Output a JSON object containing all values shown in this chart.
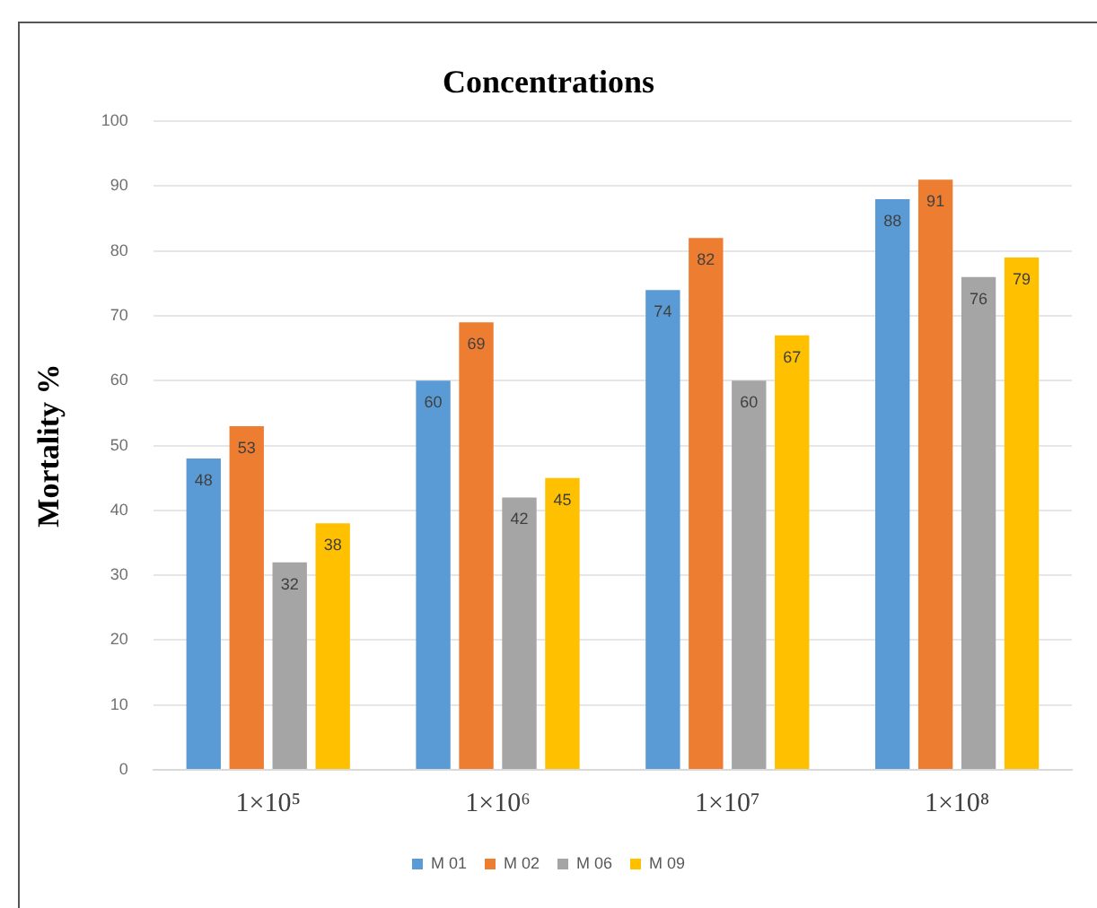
{
  "chart_data": {
    "type": "bar",
    "title": "Concentrations",
    "ylabel": "Mortality %",
    "categories": [
      "1×10⁵",
      "1×10⁶",
      "1×10⁷",
      "1×10⁸"
    ],
    "series": [
      {
        "name": "M 01",
        "color": "#5b9bd5",
        "values": [
          48,
          60,
          74,
          88
        ]
      },
      {
        "name": "M 02",
        "color": "#ed7d31",
        "values": [
          53,
          69,
          82,
          91
        ]
      },
      {
        "name": "M 06",
        "color": "#a5a5a5",
        "values": [
          32,
          42,
          60,
          76
        ]
      },
      {
        "name": "M 09",
        "color": "#ffc000",
        "values": [
          38,
          45,
          67,
          79
        ]
      }
    ],
    "ylim": [
      0,
      100
    ],
    "yticks": [
      0,
      10,
      20,
      30,
      40,
      50,
      60,
      70,
      80,
      90,
      100
    ],
    "grid": "y",
    "legend": "bottom",
    "data_labels": true
  }
}
